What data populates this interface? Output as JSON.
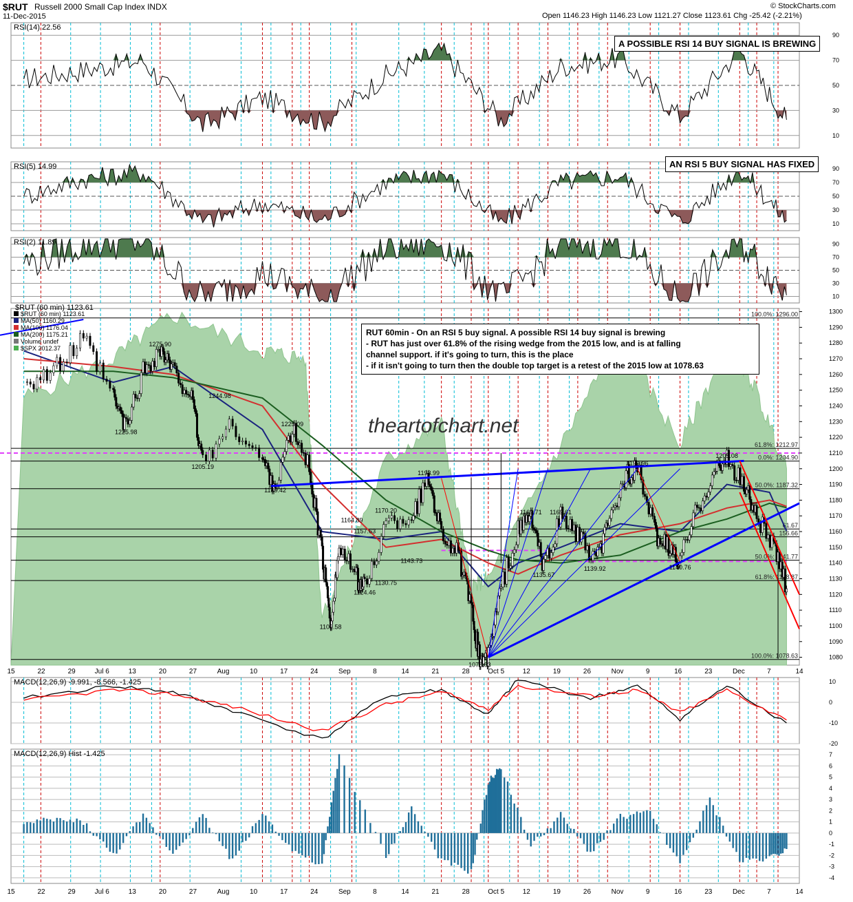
{
  "header": {
    "symbol": "$RUT",
    "name": "Russell 2000 Small Cap Index INDX",
    "date": "11-Dec-2015",
    "ohlc": "Open 1146.23  High 1146.23  Low 1121.27  Close 1123.61  Chg -25.42 (-2.21%)",
    "source": "© StockCharts.com"
  },
  "watermark": "theartofchart.net",
  "annotations": {
    "rsi14_box": "A POSSIBLE RSI 14 BUY SIGNAL IS BREWING",
    "rsi5_box": "AN RSI 5 BUY SIGNAL HAS FIXED",
    "main_lines": [
      "RUT 60min - On an RSI 5 buy signal. A possible RSI 14 buy signal is brewing",
      "- RUT has just over 61.8% of the rising wedge from the 2015 low, and is at falling",
      "channel support. if it's going to turn, this is the place",
      "- if it isn't going to turn then the double top target is a retest of the 2015 low at 1078.63"
    ]
  },
  "colors": {
    "spx_fill": "#a9d3a9",
    "price": "#000000",
    "ma50": "#1a237e",
    "ma100": "#d32f2f",
    "ma200": "#1b5e20",
    "trend_blue": "#0000ff",
    "trend_red": "#ff0000",
    "fib_magenta": "#e040fb",
    "overbought": "#4e7a4e",
    "oversold": "#8d5a5a",
    "hist": "#1f6f9a",
    "cyan_grid": "#00bcd4",
    "red_grid": "#cc0000"
  },
  "chart_data": [
    {
      "type": "line",
      "panel": "RSI(14)",
      "label": "RSI(14) 22.56",
      "ylim": [
        0,
        100
      ],
      "y_ticks": [
        10,
        30,
        50,
        70,
        90
      ],
      "last_value": 22.56,
      "x": [
        "Jun 15",
        "Jun 29",
        "Jul 13",
        "Jul 27",
        "Aug 10",
        "Aug 24",
        "Sep 8",
        "Sep 21",
        "Oct 5",
        "Oct 19",
        "Nov 2",
        "Nov 16",
        "Nov 30",
        "Dec 11"
      ],
      "values": [
        55,
        62,
        70,
        18,
        40,
        20,
        58,
        78,
        22,
        65,
        72,
        25,
        78,
        22.56
      ]
    },
    {
      "type": "line",
      "panel": "RSI(5)",
      "label": "RSI(5) 14.99",
      "ylim": [
        0,
        100
      ],
      "y_ticks": [
        10,
        30,
        50,
        70,
        90
      ],
      "last_value": 14.99,
      "x": [
        "Jun 15",
        "Jun 29",
        "Jul 13",
        "Jul 27",
        "Aug 10",
        "Aug 24",
        "Sep 8",
        "Sep 21",
        "Oct 5",
        "Oct 19",
        "Nov 2",
        "Nov 16",
        "Nov 30",
        "Dec 11"
      ],
      "values": [
        50,
        75,
        85,
        12,
        40,
        15,
        70,
        85,
        10,
        70,
        80,
        12,
        90,
        14.99
      ]
    },
    {
      "type": "line",
      "panel": "RSI(2)",
      "label": "RSI(2) 11.89",
      "ylim": [
        0,
        100
      ],
      "y_ticks": [
        10,
        30,
        50,
        70,
        90
      ],
      "last_value": 11.89,
      "x": [
        "Jun 15",
        "Jun 29",
        "Jul 13",
        "Jul 27",
        "Aug 10",
        "Aug 24",
        "Sep 8",
        "Sep 21",
        "Oct 5",
        "Oct 19",
        "Nov 2",
        "Nov 16",
        "Nov 30",
        "Dec 11"
      ],
      "values": [
        60,
        90,
        95,
        5,
        45,
        5,
        85,
        95,
        5,
        90,
        95,
        5,
        95,
        11.89
      ]
    },
    {
      "type": "line",
      "panel": "$RUT (60 min)",
      "title": "$RUT (60 min) 1123.61",
      "ylim": [
        1075,
        1302
      ],
      "y_ticks": [
        1080,
        1090,
        1100,
        1110,
        1120,
        1130,
        1140,
        1150,
        1160,
        1170,
        1180,
        1190,
        1200,
        1210,
        1220,
        1230,
        1240,
        1250,
        1260,
        1270,
        1280,
        1290,
        1300
      ],
      "x_ticks": [
        "15",
        "22",
        "29",
        "Jul 6",
        "13",
        "20",
        "27",
        "Aug",
        "10",
        "17",
        "24",
        "Sep",
        "8",
        "14",
        "21",
        "28",
        "Oct 5",
        "12",
        "19",
        "26",
        "Nov",
        "9",
        "16",
        "23",
        "Dec",
        "7",
        "14"
      ],
      "legend": [
        "$RUT (60 min) 1123.61",
        "MA(50) 1160.29",
        "MA(100) 1176.04",
        "MA(200) 1175.21",
        "Volume undef",
        "$SPX 2012.37"
      ],
      "series": [
        {
          "name": "$RUT (60 min)",
          "x": [
            "Jun 15",
            "Jun 22",
            "Jun 29",
            "Jul 6",
            "Jul 9",
            "Jul 13",
            "Jul 17",
            "Jul 20",
            "Jul 24",
            "Jul 27",
            "Aug 3",
            "Aug 10",
            "Aug 13",
            "Aug 17",
            "Aug 21",
            "Aug 24",
            "Aug 26",
            "Aug 28",
            "Sep 1",
            "Sep 3",
            "Sep 8",
            "Sep 14",
            "Sep 18",
            "Sep 21",
            "Sep 25",
            "Sep 28",
            "Sep 30",
            "Oct 2",
            "Oct 5",
            "Oct 9",
            "Oct 12",
            "Oct 15",
            "Oct 19",
            "Oct 23",
            "Oct 27",
            "Oct 30",
            "Nov 3",
            "Nov 6",
            "Nov 10",
            "Nov 13",
            "Nov 16",
            "Nov 20",
            "Nov 24",
            "Nov 27",
            "Dec 1",
            "Dec 4",
            "Dec 8",
            "Dec 11"
          ],
          "values": [
            1255,
            1262,
            1282,
            1245,
            1226,
            1262,
            1276,
            1262,
            1248,
            1205,
            1228,
            1205,
            1189,
            1225,
            1200,
            1145,
            1103,
            1150,
            1131,
            1124,
            1165,
            1170,
            1194,
            1160,
            1145,
            1110,
            1079,
            1080,
            1125,
            1160,
            1170,
            1136,
            1170,
            1158,
            1140,
            1162,
            1195,
            1200,
            1160,
            1150,
            1141,
            1175,
            1198,
            1205,
            1190,
            1170,
            1150,
            1123.61
          ]
        },
        {
          "name": "MA(50)",
          "x": [
            "Jun 15",
            "Jul 6",
            "Jul 20",
            "Aug 10",
            "Aug 24",
            "Sep 8",
            "Sep 21",
            "Oct 2",
            "Oct 9",
            "Oct 19",
            "Nov 2",
            "Nov 16",
            "Nov 27",
            "Dec 7",
            "Dec 11"
          ],
          "values": [
            1275,
            1255,
            1265,
            1225,
            1160,
            1155,
            1160,
            1125,
            1140,
            1150,
            1165,
            1160,
            1190,
            1185,
            1160.29
          ]
        },
        {
          "name": "MA(100)",
          "x": [
            "Jun 15",
            "Jul 6",
            "Jul 20",
            "Aug 10",
            "Aug 24",
            "Sep 8",
            "Sep 21",
            "Oct 2",
            "Oct 9",
            "Oct 19",
            "Nov 2",
            "Nov 16",
            "Nov 27",
            "Dec 7",
            "Dec 11"
          ],
          "values": [
            1270,
            1265,
            1260,
            1240,
            1190,
            1150,
            1155,
            1140,
            1133,
            1145,
            1158,
            1165,
            1175,
            1180,
            1176.04
          ]
        },
        {
          "name": "MA(200)",
          "x": [
            "Jun 15",
            "Jul 6",
            "Jul 20",
            "Aug 10",
            "Aug 24",
            "Sep 8",
            "Sep 21",
            "Oct 2",
            "Oct 9",
            "Oct 19",
            "Nov 2",
            "Nov 16",
            "Nov 27",
            "Dec 7",
            "Dec 11"
          ],
          "values": [
            1262,
            1262,
            1258,
            1245,
            1215,
            1180,
            1160,
            1148,
            1142,
            1140,
            1145,
            1160,
            1168,
            1178,
            1175.21
          ]
        },
        {
          "name": "$SPX",
          "x": [
            "Jun 15",
            "Jul 6",
            "Jul 20",
            "Aug 10",
            "Aug 20",
            "Aug 24",
            "Sep 8",
            "Sep 21",
            "Sep 28",
            "Oct 2",
            "Oct 19",
            "Nov 2",
            "Nov 16",
            "Nov 27",
            "Dec 3",
            "Dec 11"
          ],
          "values": [
            1245,
            1270,
            1298,
            1275,
            1270,
            1105,
            1205,
            1230,
            1125,
            1130,
            1215,
            1285,
            1215,
            1278,
            1255,
            1200
          ]
        }
      ],
      "price_labels": [
        "1275.90",
        "1225.98",
        "1244.98",
        "1205.19",
        "1225.09",
        "1189.42",
        "1164.89",
        "1157.63",
        "1170.20",
        "1193.99",
        "1102.58",
        "1124.46",
        "1130.75",
        "1143.73",
        "1078.63",
        "1169.71",
        "1169.61",
        "1135.67",
        "1139.92",
        "1199.96",
        "1140.76",
        "1205.08"
      ],
      "fib_levels": [
        {
          "label": "100.0%: 1296.00",
          "value": 1296
        },
        {
          "label": "61.8%: 1212.97",
          "value": 1212.97
        },
        {
          "label": "0.0%: 1204.90",
          "value": 1204.9
        },
        {
          "label": "50.0%: 1187.32",
          "value": 1187.32
        },
        {
          "label": "61.67",
          "value": 1161.67
        },
        {
          "label": "156.66",
          "value": 1156.66
        },
        {
          "label": "50.0%: 1141.77",
          "value": 1141.77
        },
        {
          "label": "61.8%: 1128.87",
          "value": 1128.87
        },
        {
          "label": "100.0%: 1078.63",
          "value": 1078.63
        }
      ]
    },
    {
      "type": "line",
      "panel": "MACD(12,26,9)",
      "label": "MACD(12,26,9) -9.991, -8.566, -1.425",
      "ylim": [
        -20,
        12
      ],
      "y_ticks": [
        -20,
        -10,
        0,
        10
      ],
      "x": [
        "Jun 15",
        "Jul 6",
        "Jul 20",
        "Aug 3",
        "Aug 24",
        "Sep 8",
        "Sep 21",
        "Oct 2",
        "Oct 9",
        "Oct 26",
        "Nov 6",
        "Nov 16",
        "Nov 27",
        "Dec 11"
      ],
      "series": [
        {
          "name": "MACD",
          "values": [
            2,
            8,
            5,
            -4,
            -18,
            3,
            6,
            -6,
            11,
            2,
            8,
            -8,
            8,
            -9.991
          ]
        },
        {
          "name": "Signal",
          "values": [
            1,
            6,
            4,
            -2,
            -14,
            -1,
            5,
            -3,
            8,
            3,
            6,
            -5,
            6,
            -8.566
          ]
        }
      ]
    },
    {
      "type": "bar",
      "panel": "MACD(12,26,9) Hist",
      "label": "MACD(12,26,9) Hist -1.425",
      "ylim": [
        -4.5,
        7.5
      ],
      "y_ticks": [
        -4,
        -3,
        -2,
        -1,
        0,
        1,
        2,
        3,
        4,
        5,
        6,
        7
      ],
      "x": [
        "Jun 15",
        "Jun 22",
        "Jun 29",
        "Jul 6",
        "Jul 13",
        "Jul 20",
        "Jul 27",
        "Aug 3",
        "Aug 10",
        "Aug 17",
        "Aug 24",
        "Aug 28",
        "Sep 8",
        "Sep 14",
        "Sep 21",
        "Sep 28",
        "Oct 2",
        "Oct 5",
        "Oct 12",
        "Oct 19",
        "Oct 26",
        "Nov 2",
        "Nov 9",
        "Nov 16",
        "Nov 23",
        "Nov 30",
        "Dec 7",
        "Dec 11"
      ],
      "values": [
        0.8,
        1.2,
        1.0,
        -2.0,
        1.5,
        -1.8,
        1.6,
        -2.5,
        1.8,
        -1.5,
        -3.0,
        7.0,
        -2.2,
        2.2,
        -2.5,
        -3.5,
        4.5,
        6.0,
        -1.2,
        1.6,
        -1.8,
        1.5,
        1.8,
        -2.8,
        3.0,
        -2.5,
        -2.2,
        -1.425
      ]
    }
  ]
}
